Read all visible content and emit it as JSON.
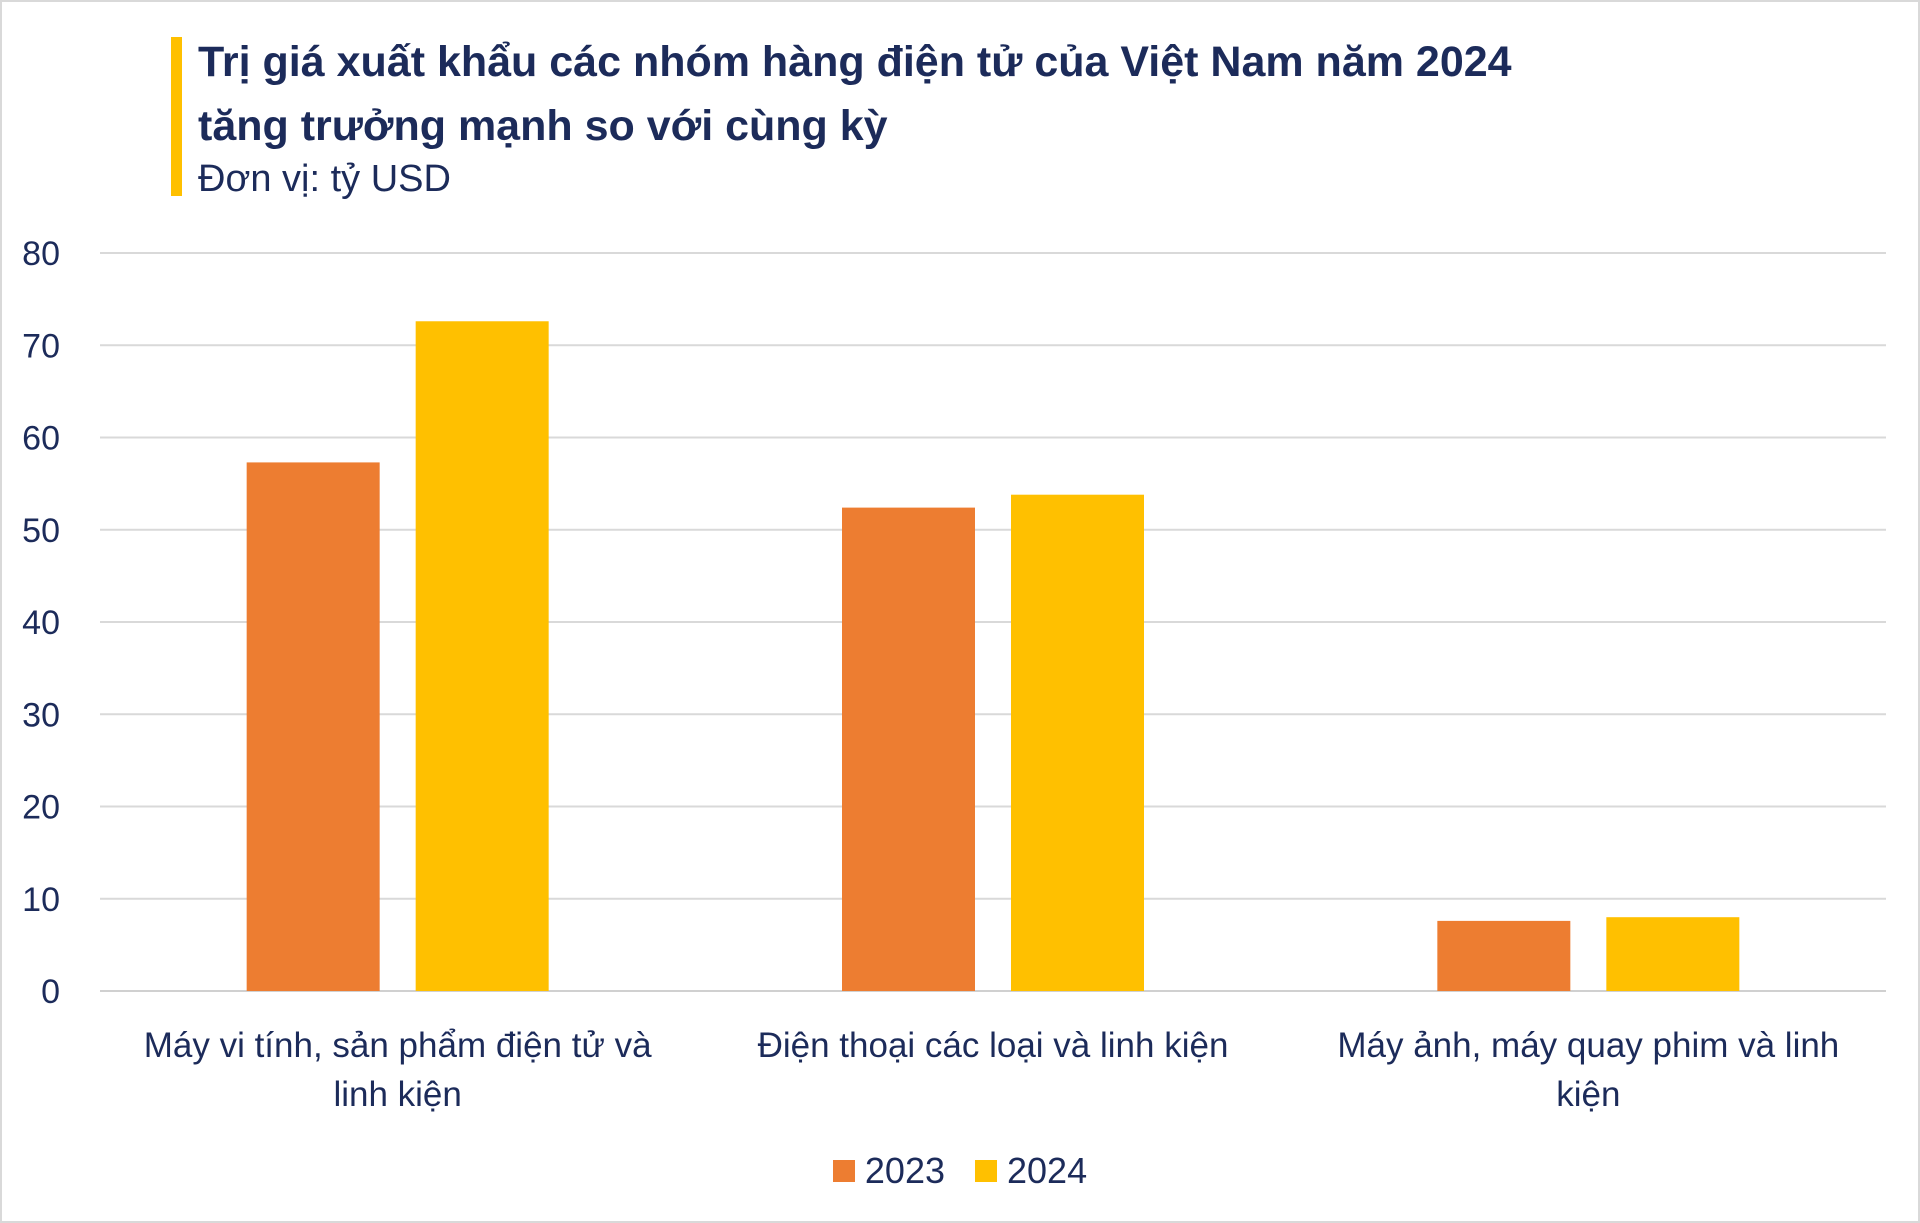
{
  "chart_data": {
    "type": "bar",
    "title": "Trị giá xuất khẩu các nhóm hàng điện tử của Việt Nam năm 2024 tăng trưởng mạnh so với cùng kỳ",
    "title_lines": [
      "Trị giá xuất khẩu các nhóm hàng điện tử của Việt Nam năm 2024",
      "tăng trưởng mạnh so với cùng kỳ"
    ],
    "subtitle": "Đơn vị: tỷ USD",
    "categories": [
      [
        "Máy vi tính, sản phẩm điện tử và",
        "linh kiện"
      ],
      [
        "Điện thoại các loại và linh kiện"
      ],
      [
        "Máy ảnh, máy quay phim và linh",
        "kiện"
      ]
    ],
    "series": [
      {
        "name": "2023",
        "color": "#ed7d31",
        "values": [
          57.3,
          52.4,
          7.6
        ]
      },
      {
        "name": "2024",
        "color": "#ffc000",
        "values": [
          72.6,
          53.8,
          8.0
        ]
      }
    ],
    "ylim": [
      0,
      80
    ],
    "yticks": [
      "0",
      "10",
      "20",
      "30",
      "40",
      "50",
      "60",
      "70",
      "80"
    ],
    "grid": true,
    "legend_position": "bottom",
    "xlabel": "",
    "ylabel": ""
  }
}
